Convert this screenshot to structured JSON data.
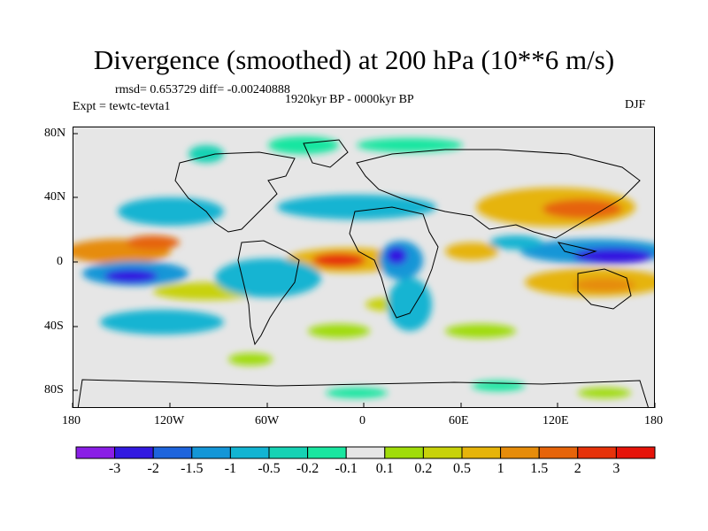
{
  "title": "Divergence (smoothed) at 200 hPa (10**6 m/s)",
  "stats_line": "rmsd= 0.653729 diff= -0.00240888",
  "experiment": "Expt = tewtc-tevta1",
  "period": "1920kyr BP - 0000kyr BP",
  "season": "DJF",
  "y_ticks": [
    "80N",
    "40N",
    "0",
    "40S",
    "80S"
  ],
  "x_ticks": [
    "180",
    "120W",
    "60W",
    "0",
    "60E",
    "120E",
    "180"
  ],
  "colorbar": {
    "labels": [
      "-3",
      "-2",
      "-1.5",
      "-1",
      "-0.5",
      "-0.2",
      "-0.1",
      "0.1",
      "0.2",
      "0.5",
      "1",
      "1.5",
      "2",
      "3"
    ],
    "colors": [
      "#8a1ee6",
      "#3219e0",
      "#1e64dc",
      "#1496d7",
      "#12b4d2",
      "#16d2b4",
      "#19e6a0",
      "#e6e6e6",
      "#a0dc0a",
      "#c8d20a",
      "#e6b40a",
      "#e68c0a",
      "#e6640a",
      "#e6320a",
      "#e6140a"
    ]
  },
  "colors": {
    "land_outline": "#000000",
    "background": "#e6e6e6"
  }
}
